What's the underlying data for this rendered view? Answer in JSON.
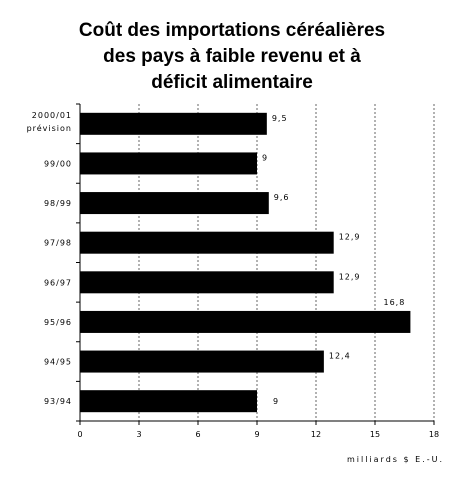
{
  "chart_data": {
    "type": "bar",
    "orientation": "horizontal",
    "title_lines": [
      "Coût des importations céréalières",
      "des pays à faible revenu et à",
      "déficit alimentaire"
    ],
    "categories": [
      [
        "2000/01",
        "prévision"
      ],
      [
        "99/00"
      ],
      [
        "98/99"
      ],
      [
        "97/98"
      ],
      [
        "96/97"
      ],
      [
        "95/96"
      ],
      [
        "94/95"
      ],
      [
        "93/94"
      ]
    ],
    "values": [
      9.5,
      9,
      9.6,
      12.9,
      12.9,
      16.8,
      12.4,
      9
    ],
    "value_labels": [
      "9,5",
      "9",
      "9,6",
      "12,9",
      "12,9",
      "16,8",
      "12,4",
      "9"
    ],
    "xlim": [
      0,
      18
    ],
    "xticks": [
      0,
      3,
      6,
      9,
      12,
      15,
      18
    ],
    "xlabel": "milliards $ E.-U.",
    "grid": "vertical dashed",
    "bar_color": "#000000"
  }
}
